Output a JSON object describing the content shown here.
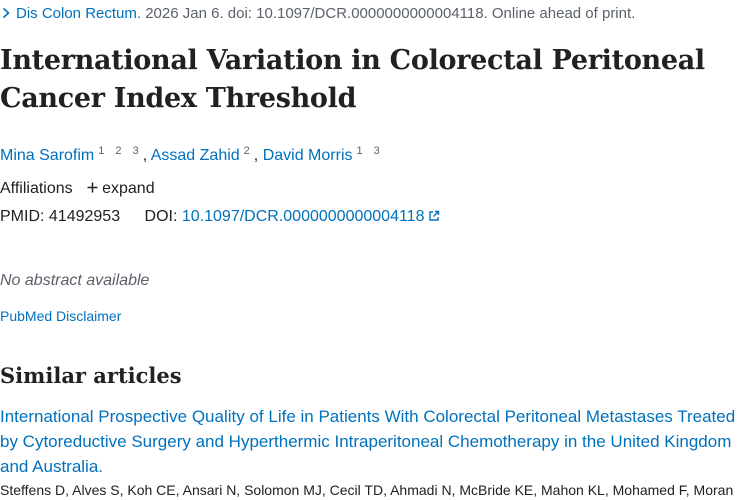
{
  "citation": {
    "journal": "Dis Colon Rectum.",
    "details": "2026 Jan 6. doi: 10.1097/DCR.0000000000004118. Online ahead of print."
  },
  "article": {
    "title": "International Variation in Colorectal Peritoneal Cancer Index Threshold"
  },
  "authors": [
    {
      "name": "Mina Sarofim",
      "affiliations": "1 2 3"
    },
    {
      "name": "Assad Zahid",
      "affiliations": "2"
    },
    {
      "name": "David Morris",
      "affiliations": "1 3"
    }
  ],
  "author_separator": ",",
  "affiliations": {
    "label": "Affiliations",
    "expand_label": "expand"
  },
  "identifiers": {
    "pmid_label": "PMID:",
    "pmid": "41492953",
    "doi_label": "DOI:",
    "doi": "10.1097/DCR.0000000000004118"
  },
  "abstract": {
    "no_abstract": "No abstract available"
  },
  "disclaimer": {
    "label": "PubMed Disclaimer"
  },
  "similar_articles": {
    "heading": "Similar articles",
    "items": [
      {
        "title": "International Prospective Quality of Life in Patients With Colorectal Peritoneal Metastases Treated by Cytoreductive Surgery and Hyperthermic Intraperitoneal Chemotherapy in the United Kingdom and Australia.",
        "authors": "Steffens D, Alves S, Koh CE, Ansari N, Solomon MJ, Cecil TD, Ahmadi N, McBride KE, Mahon KL, Mohamed F, Moran"
      }
    ]
  },
  "colors": {
    "link": "#0071bc",
    "text": "#212121",
    "muted": "#5b616b"
  },
  "icons": {
    "citation": "chevron-right-icon",
    "expand": "plus-icon",
    "doi": "external-link-icon"
  }
}
